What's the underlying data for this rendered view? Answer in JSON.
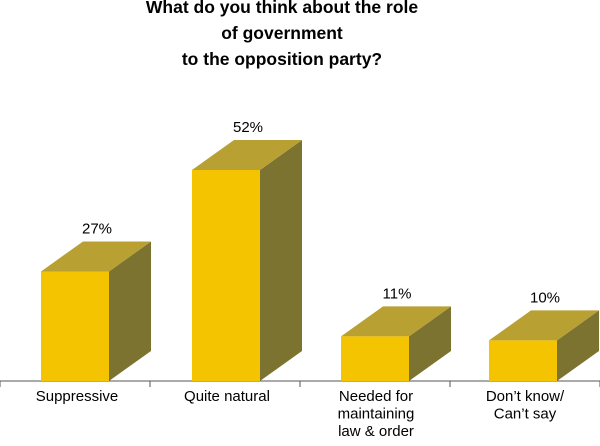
{
  "chart_data": {
    "type": "bar",
    "title_lines": [
      "What do you think about the role",
      "of government",
      "to the opposition party?"
    ],
    "categories": [
      [
        "Suppressive"
      ],
      [
        "Quite natural"
      ],
      [
        "Needed for",
        "maintaining",
        "law & order"
      ],
      [
        "Don’t know/",
        "Can’t say"
      ]
    ],
    "values": [
      27,
      52,
      11,
      10
    ],
    "value_labels": [
      "27%",
      "52%",
      "11%",
      "10%"
    ],
    "ylim": [
      0,
      60
    ],
    "grid": false,
    "legend": "none",
    "colors": {
      "front": "#f5c400",
      "top": "#b8a032",
      "side": "#7d7331",
      "axis": "#555555"
    }
  }
}
